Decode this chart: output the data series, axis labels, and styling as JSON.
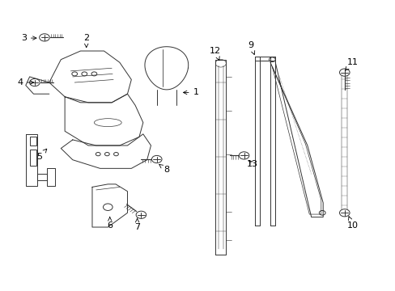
{
  "background_color": "#ffffff",
  "fig_width": 4.89,
  "fig_height": 3.6,
  "dpi": 100,
  "line_color": "#333333",
  "label_fontsize": 8,
  "label_color": "#000000",
  "label_configs": [
    [
      1,
      0.495,
      0.685,
      0.455,
      0.685
    ],
    [
      2,
      0.215,
      0.875,
      0.215,
      0.84
    ],
    [
      3,
      0.055,
      0.875,
      0.095,
      0.875
    ],
    [
      4,
      0.045,
      0.72,
      0.088,
      0.72
    ],
    [
      5,
      0.095,
      0.46,
      0.115,
      0.49
    ],
    [
      6,
      0.275,
      0.22,
      0.275,
      0.26
    ],
    [
      7,
      0.345,
      0.215,
      0.345,
      0.255
    ],
    [
      8,
      0.42,
      0.415,
      0.395,
      0.44
    ],
    [
      9,
      0.635,
      0.85,
      0.645,
      0.815
    ],
    [
      10,
      0.895,
      0.22,
      0.885,
      0.255
    ],
    [
      11,
      0.895,
      0.79,
      0.875,
      0.76
    ],
    [
      12,
      0.545,
      0.83,
      0.555,
      0.795
    ],
    [
      13,
      0.64,
      0.435,
      0.625,
      0.455
    ]
  ]
}
